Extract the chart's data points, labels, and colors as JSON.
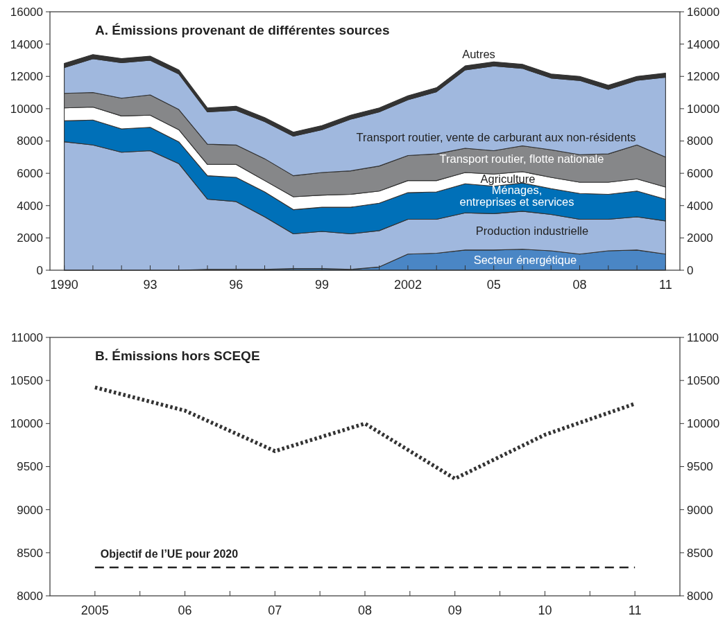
{
  "chart_data": [
    {
      "type": "area",
      "stacked": true,
      "title": "A. Émissions provenant de différentes sources",
      "x": [
        1990,
        1991,
        1992,
        1993,
        1994,
        1995,
        1996,
        1997,
        1998,
        1999,
        2000,
        2001,
        2002,
        2003,
        2004,
        2005,
        2006,
        2007,
        2008,
        2009,
        2010,
        2011
      ],
      "xlim": [
        1989.5,
        2011.5
      ],
      "xticks": [
        {
          "value": 1990,
          "label": "1990"
        },
        {
          "value": 1991,
          "label": null
        },
        {
          "value": 1992,
          "label": null
        },
        {
          "value": 1993,
          "label": "93"
        },
        {
          "value": 1994,
          "label": null
        },
        {
          "value": 1995,
          "label": null
        },
        {
          "value": 1996,
          "label": "96"
        },
        {
          "value": 1997,
          "label": null
        },
        {
          "value": 1998,
          "label": null
        },
        {
          "value": 1999,
          "label": "99"
        },
        {
          "value": 2000,
          "label": null
        },
        {
          "value": 2001,
          "label": null
        },
        {
          "value": 2002,
          "label": "2002"
        },
        {
          "value": 2003,
          "label": null
        },
        {
          "value": 2004,
          "label": null
        },
        {
          "value": 2005,
          "label": "05"
        },
        {
          "value": 2006,
          "label": null
        },
        {
          "value": 2007,
          "label": null
        },
        {
          "value": 2008,
          "label": "08"
        },
        {
          "value": 2009,
          "label": null
        },
        {
          "value": 2010,
          "label": null
        },
        {
          "value": 2011,
          "label": "11"
        }
      ],
      "ylim": [
        0,
        16000
      ],
      "yticks": [
        0,
        2000,
        4000,
        6000,
        8000,
        10000,
        12000,
        14000,
        16000
      ],
      "y2lim": [
        0,
        16000
      ],
      "y2ticks": [
        0,
        2000,
        4000,
        6000,
        8000,
        10000,
        12000,
        14000,
        16000
      ],
      "grid": false,
      "series": [
        {
          "name": "Secteur énergétique",
          "color": "#4a86c5",
          "values": [
            0,
            0,
            0,
            0,
            0,
            50,
            50,
            50,
            100,
            100,
            50,
            200,
            1000,
            1050,
            1250,
            1250,
            1300,
            1200,
            1000,
            1200,
            1250,
            1000
          ]
        },
        {
          "name": "Production industrielle",
          "color": "#a0b8de",
          "values": [
            7950,
            7750,
            7300,
            7400,
            6600,
            4350,
            4200,
            3250,
            2150,
            2300,
            2200,
            2250,
            2150,
            2100,
            2300,
            2250,
            2350,
            2250,
            2150,
            1950,
            2050,
            2050
          ]
        },
        {
          "name": "Ménages, entreprises et services",
          "color": "#0070b8",
          "values": [
            1300,
            1550,
            1450,
            1450,
            1350,
            1450,
            1500,
            1550,
            1500,
            1500,
            1650,
            1700,
            1650,
            1700,
            1800,
            1700,
            1750,
            1600,
            1600,
            1550,
            1600,
            1350
          ]
        },
        {
          "name": "Agriculture",
          "color": "#ffffff",
          "values": [
            800,
            800,
            800,
            750,
            750,
            700,
            800,
            700,
            800,
            750,
            800,
            750,
            750,
            700,
            700,
            750,
            700,
            700,
            700,
            750,
            750,
            750
          ]
        },
        {
          "name": "Transport routier, flotte nationale",
          "color": "#868789",
          "values": [
            900,
            900,
            1100,
            1250,
            1250,
            1250,
            1200,
            1350,
            1300,
            1400,
            1450,
            1550,
            1550,
            1650,
            1500,
            1450,
            1600,
            1700,
            1700,
            1750,
            2100,
            1850
          ]
        },
        {
          "name": "Transport routier, vente de carburant aux non-résidents",
          "color": "#a0b8de",
          "values": [
            1600,
            2100,
            2200,
            2150,
            2200,
            2000,
            2150,
            2300,
            2450,
            2650,
            3200,
            3350,
            3450,
            3850,
            4850,
            5250,
            4800,
            4450,
            4600,
            4000,
            4000,
            4950
          ]
        },
        {
          "name": "Autres",
          "color": "#333333",
          "values": [
            250,
            250,
            250,
            250,
            250,
            250,
            250,
            250,
            250,
            250,
            250,
            250,
            250,
            250,
            250,
            250,
            250,
            250,
            250,
            250,
            250,
            250
          ]
        }
      ]
    },
    {
      "type": "line",
      "title": "B. Émissions hors SCEQE",
      "x": [
        2005,
        2006,
        2007,
        2008,
        2009,
        2010,
        2011
      ],
      "xlim": [
        2004.5,
        2011.5
      ],
      "xticks": [
        {
          "value": 2005,
          "label": "2005"
        },
        {
          "value": 2005.5,
          "label": null
        },
        {
          "value": 2006,
          "label": "06"
        },
        {
          "value": 2006.5,
          "label": null
        },
        {
          "value": 2007,
          "label": "07"
        },
        {
          "value": 2007.5,
          "label": null
        },
        {
          "value": 2008,
          "label": "08"
        },
        {
          "value": 2008.5,
          "label": null
        },
        {
          "value": 2009,
          "label": "09"
        },
        {
          "value": 2009.5,
          "label": null
        },
        {
          "value": 2010,
          "label": "10"
        },
        {
          "value": 2010.5,
          "label": null
        },
        {
          "value": 2011,
          "label": "11"
        }
      ],
      "ylim": [
        8000,
        11000
      ],
      "yticks": [
        8000,
        8500,
        9000,
        9500,
        10000,
        10500,
        11000
      ],
      "y2lim": [
        8000,
        11000
      ],
      "y2ticks": [
        8000,
        8500,
        9000,
        9500,
        10000,
        10500,
        11000
      ],
      "grid": false,
      "series": [
        {
          "color": "#333333",
          "line_style": "dotted",
          "values": [
            10420,
            10150,
            9680,
            10000,
            9360,
            9870,
            10230
          ]
        },
        {
          "name": "Objectif de l’UE pour 2020",
          "color": "#222222",
          "line_style": "dashed",
          "x": [
            2005,
            2011
          ],
          "values": [
            8330,
            8330
          ]
        }
      ]
    }
  ]
}
